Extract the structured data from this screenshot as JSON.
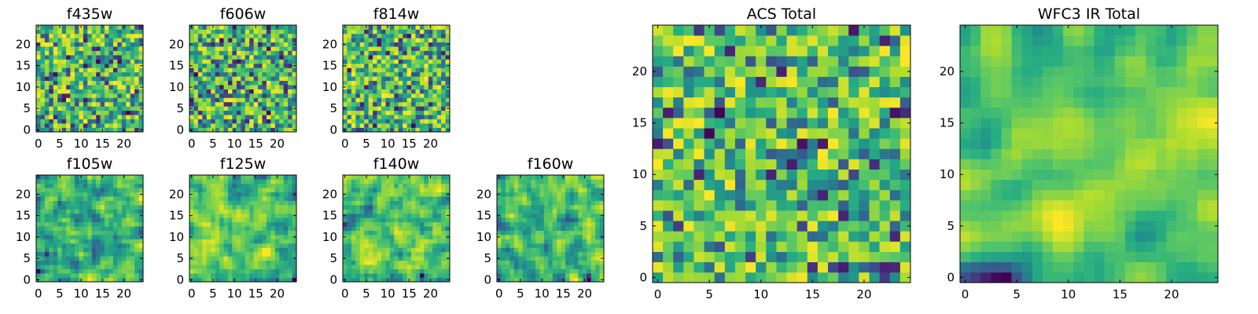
{
  "chart_data": [
    {
      "type": "heatmap",
      "title": "f435w",
      "shape": [
        25,
        25
      ],
      "xticks": [
        0,
        5,
        10,
        15,
        20
      ],
      "yticks": [
        0,
        5,
        10,
        15,
        20
      ],
      "seed": 11,
      "smooth": 0,
      "bright": 0.55
    },
    {
      "type": "heatmap",
      "title": "f606w",
      "shape": [
        25,
        25
      ],
      "xticks": [
        0,
        5,
        10,
        15,
        20
      ],
      "yticks": [
        0,
        5,
        10,
        15,
        20
      ],
      "seed": 23,
      "smooth": 0,
      "bright": 0.55
    },
    {
      "type": "heatmap",
      "title": "f814w",
      "shape": [
        25,
        25
      ],
      "xticks": [
        0,
        5,
        10,
        15,
        20
      ],
      "yticks": [
        0,
        5,
        10,
        15,
        20
      ],
      "seed": 37,
      "smooth": 0,
      "bright": 0.6
    },
    {
      "type": "heatmap",
      "title": "f105w",
      "shape": [
        25,
        25
      ],
      "xticks": [
        0,
        5,
        10,
        15,
        20
      ],
      "yticks": [
        0,
        5,
        10,
        15,
        20
      ],
      "seed": 41,
      "smooth": 1,
      "bright": 0.6
    },
    {
      "type": "heatmap",
      "title": "f125w",
      "shape": [
        25,
        25
      ],
      "xticks": [
        0,
        5,
        10,
        15,
        20
      ],
      "yticks": [
        0,
        5,
        10,
        15,
        20
      ],
      "seed": 53,
      "smooth": 1,
      "bright": 0.65
    },
    {
      "type": "heatmap",
      "title": "f140w",
      "shape": [
        25,
        25
      ],
      "xticks": [
        0,
        5,
        10,
        15,
        20
      ],
      "yticks": [
        0,
        5,
        10,
        15,
        20
      ],
      "seed": 67,
      "smooth": 1,
      "bright": 0.65
    },
    {
      "type": "heatmap",
      "title": "f160w",
      "shape": [
        25,
        25
      ],
      "xticks": [
        0,
        5,
        10,
        15,
        20
      ],
      "yticks": [
        0,
        5,
        10,
        15,
        20
      ],
      "seed": 79,
      "smooth": 1,
      "bright": 0.5
    },
    {
      "type": "heatmap",
      "title": "ACS Total",
      "shape": [
        25,
        25
      ],
      "xticks": [
        0,
        5,
        10,
        15,
        20
      ],
      "yticks": [
        0,
        5,
        10,
        15,
        20
      ],
      "seed": 83,
      "smooth": 0,
      "bright": 0.68
    },
    {
      "type": "heatmap",
      "title": "WFC3 IR Total",
      "shape": [
        25,
        25
      ],
      "xticks": [
        0,
        5,
        10,
        15,
        20
      ],
      "yticks": [
        0,
        5,
        10,
        15,
        20
      ],
      "seed": 97,
      "smooth": 2,
      "bright": 0.55
    }
  ],
  "colors": {
    "colormap": "viridis",
    "low": "#440154",
    "mid": "#21918c",
    "high": "#fde725",
    "frame": "#000000"
  }
}
